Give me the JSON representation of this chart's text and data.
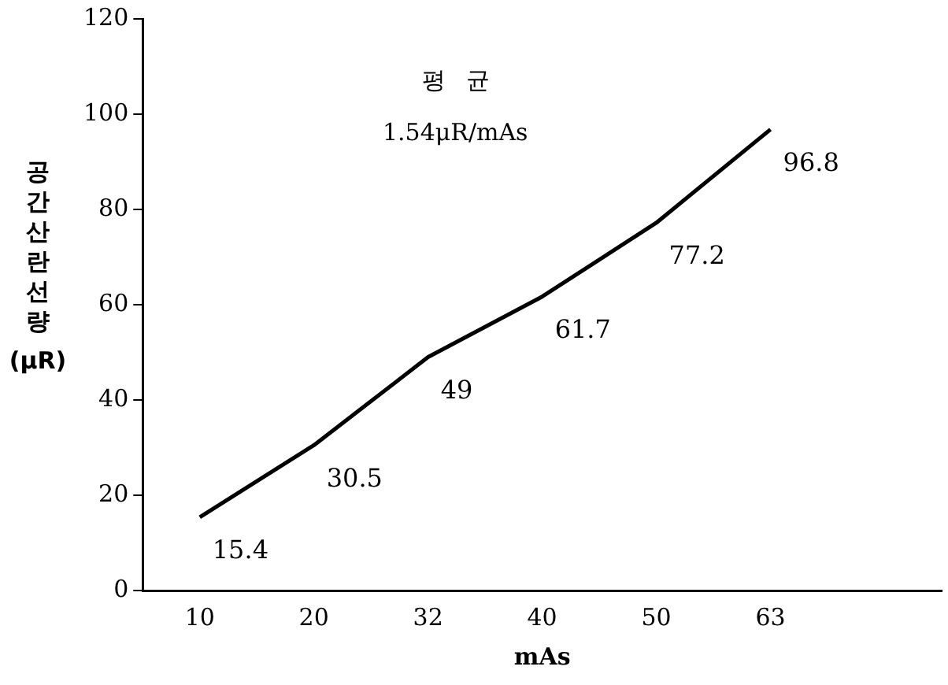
{
  "chart_data": {
    "type": "line",
    "xlabel": "mAs",
    "ylabel": "공간산란선량 (μR)",
    "categories": [
      "10",
      "20",
      "32",
      "40",
      "50",
      "63",
      null
    ],
    "values": [
      15.4,
      30.5,
      49,
      61.7,
      77.2,
      96.8,
      null
    ],
    "color": "#000000",
    "ylim": [
      0,
      120
    ],
    "yticks": [
      0,
      20,
      40,
      60,
      80,
      100,
      120
    ],
    "grid": false,
    "legend": false,
    "marker": "none",
    "line_style": "solid",
    "data_labels": true,
    "annotations": [
      "평 균",
      "1.54μR/mAs"
    ]
  }
}
